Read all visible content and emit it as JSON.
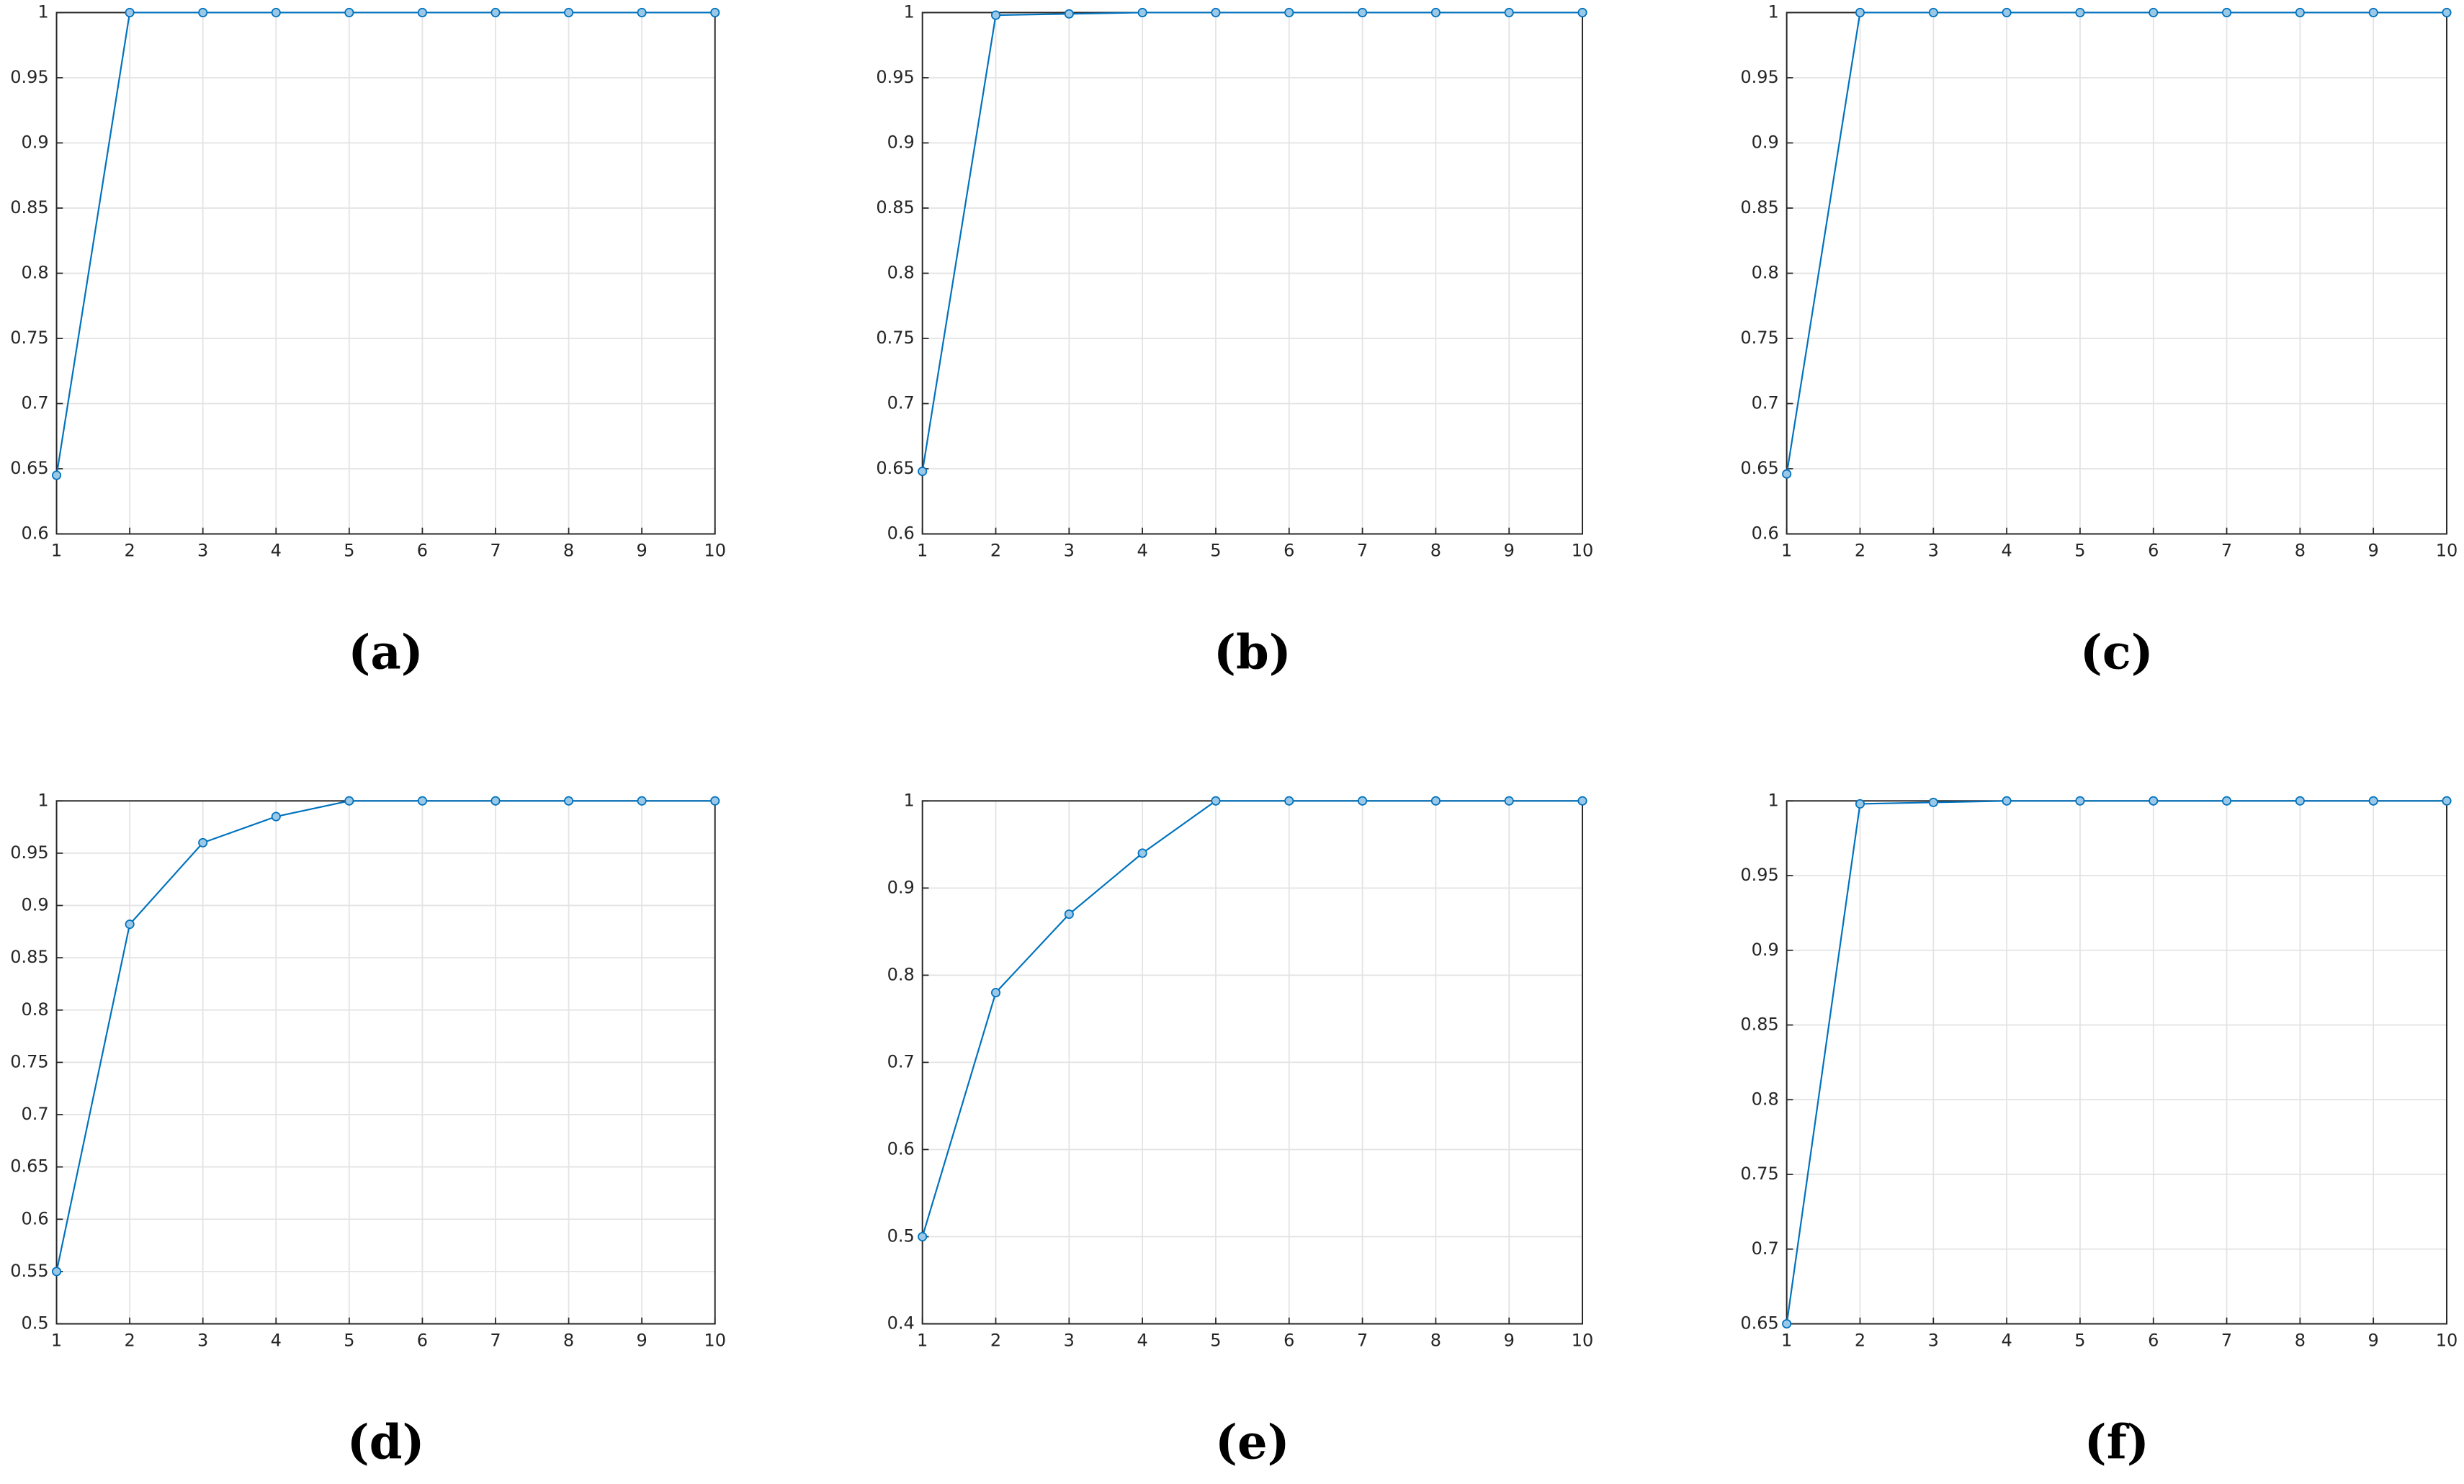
{
  "chart_data": [
    {
      "type": "line",
      "caption": "(a)",
      "x": [
        1,
        2,
        3,
        4,
        5,
        6,
        7,
        8,
        9,
        10
      ],
      "values": [
        0.645,
        1,
        1,
        1,
        1,
        1,
        1,
        1,
        1,
        1
      ],
      "color": "#0072bd",
      "xlim": [
        1,
        10
      ],
      "xticks": [
        1,
        2,
        3,
        4,
        5,
        6,
        7,
        8,
        9,
        10
      ],
      "ylim": [
        0.6,
        1
      ],
      "yticks": [
        0.6,
        0.65,
        0.7,
        0.75,
        0.8,
        0.85,
        0.9,
        0.95,
        1
      ],
      "grid": true
    },
    {
      "type": "line",
      "caption": "(b)",
      "x": [
        1,
        2,
        3,
        4,
        5,
        6,
        7,
        8,
        9,
        10
      ],
      "values": [
        0.648,
        0.998,
        0.999,
        1,
        1,
        1,
        1,
        1,
        1,
        1
      ],
      "color": "#0072bd",
      "xlim": [
        1,
        10
      ],
      "xticks": [
        1,
        2,
        3,
        4,
        5,
        6,
        7,
        8,
        9,
        10
      ],
      "ylim": [
        0.6,
        1
      ],
      "yticks": [
        0.6,
        0.65,
        0.7,
        0.75,
        0.8,
        0.85,
        0.9,
        0.95,
        1
      ],
      "grid": true
    },
    {
      "type": "line",
      "caption": "(c)",
      "x": [
        1,
        2,
        3,
        4,
        5,
        6,
        7,
        8,
        9,
        10
      ],
      "values": [
        0.646,
        1,
        1,
        1,
        1,
        1,
        1,
        1,
        1,
        1
      ],
      "color": "#0072bd",
      "xlim": [
        1,
        10
      ],
      "xticks": [
        1,
        2,
        3,
        4,
        5,
        6,
        7,
        8,
        9,
        10
      ],
      "ylim": [
        0.6,
        1
      ],
      "yticks": [
        0.6,
        0.65,
        0.7,
        0.75,
        0.8,
        0.85,
        0.9,
        0.95,
        1
      ],
      "grid": true
    },
    {
      "type": "line",
      "caption": "(d)",
      "x": [
        1,
        2,
        3,
        4,
        5,
        6,
        7,
        8,
        9,
        10
      ],
      "values": [
        0.55,
        0.882,
        0.96,
        0.985,
        1,
        1,
        1,
        1,
        1,
        1
      ],
      "color": "#0072bd",
      "xlim": [
        1,
        10
      ],
      "xticks": [
        1,
        2,
        3,
        4,
        5,
        6,
        7,
        8,
        9,
        10
      ],
      "ylim": [
        0.5,
        1
      ],
      "yticks": [
        0.5,
        0.55,
        0.6,
        0.65,
        0.7,
        0.75,
        0.8,
        0.85,
        0.9,
        0.95,
        1
      ],
      "grid": true
    },
    {
      "type": "line",
      "caption": "(e)",
      "x": [
        1,
        2,
        3,
        4,
        5,
        6,
        7,
        8,
        9,
        10
      ],
      "values": [
        0.5,
        0.78,
        0.87,
        0.94,
        1,
        1,
        1,
        1,
        1,
        1
      ],
      "color": "#0072bd",
      "xlim": [
        1,
        10
      ],
      "xticks": [
        1,
        2,
        3,
        4,
        5,
        6,
        7,
        8,
        9,
        10
      ],
      "ylim": [
        0.4,
        1
      ],
      "yticks": [
        0.4,
        0.5,
        0.6,
        0.7,
        0.8,
        0.9,
        1
      ],
      "grid": true
    },
    {
      "type": "line",
      "caption": "(f)",
      "x": [
        1,
        2,
        3,
        4,
        5,
        6,
        7,
        8,
        9,
        10
      ],
      "values": [
        0.65,
        0.998,
        0.999,
        1,
        1,
        1,
        1,
        1,
        1,
        1
      ],
      "color": "#0072bd",
      "xlim": [
        1,
        10
      ],
      "xticks": [
        1,
        2,
        3,
        4,
        5,
        6,
        7,
        8,
        9,
        10
      ],
      "ylim": [
        0.65,
        1
      ],
      "yticks": [
        0.65,
        0.7,
        0.75,
        0.8,
        0.85,
        0.9,
        0.95,
        1
      ],
      "grid": true
    }
  ]
}
